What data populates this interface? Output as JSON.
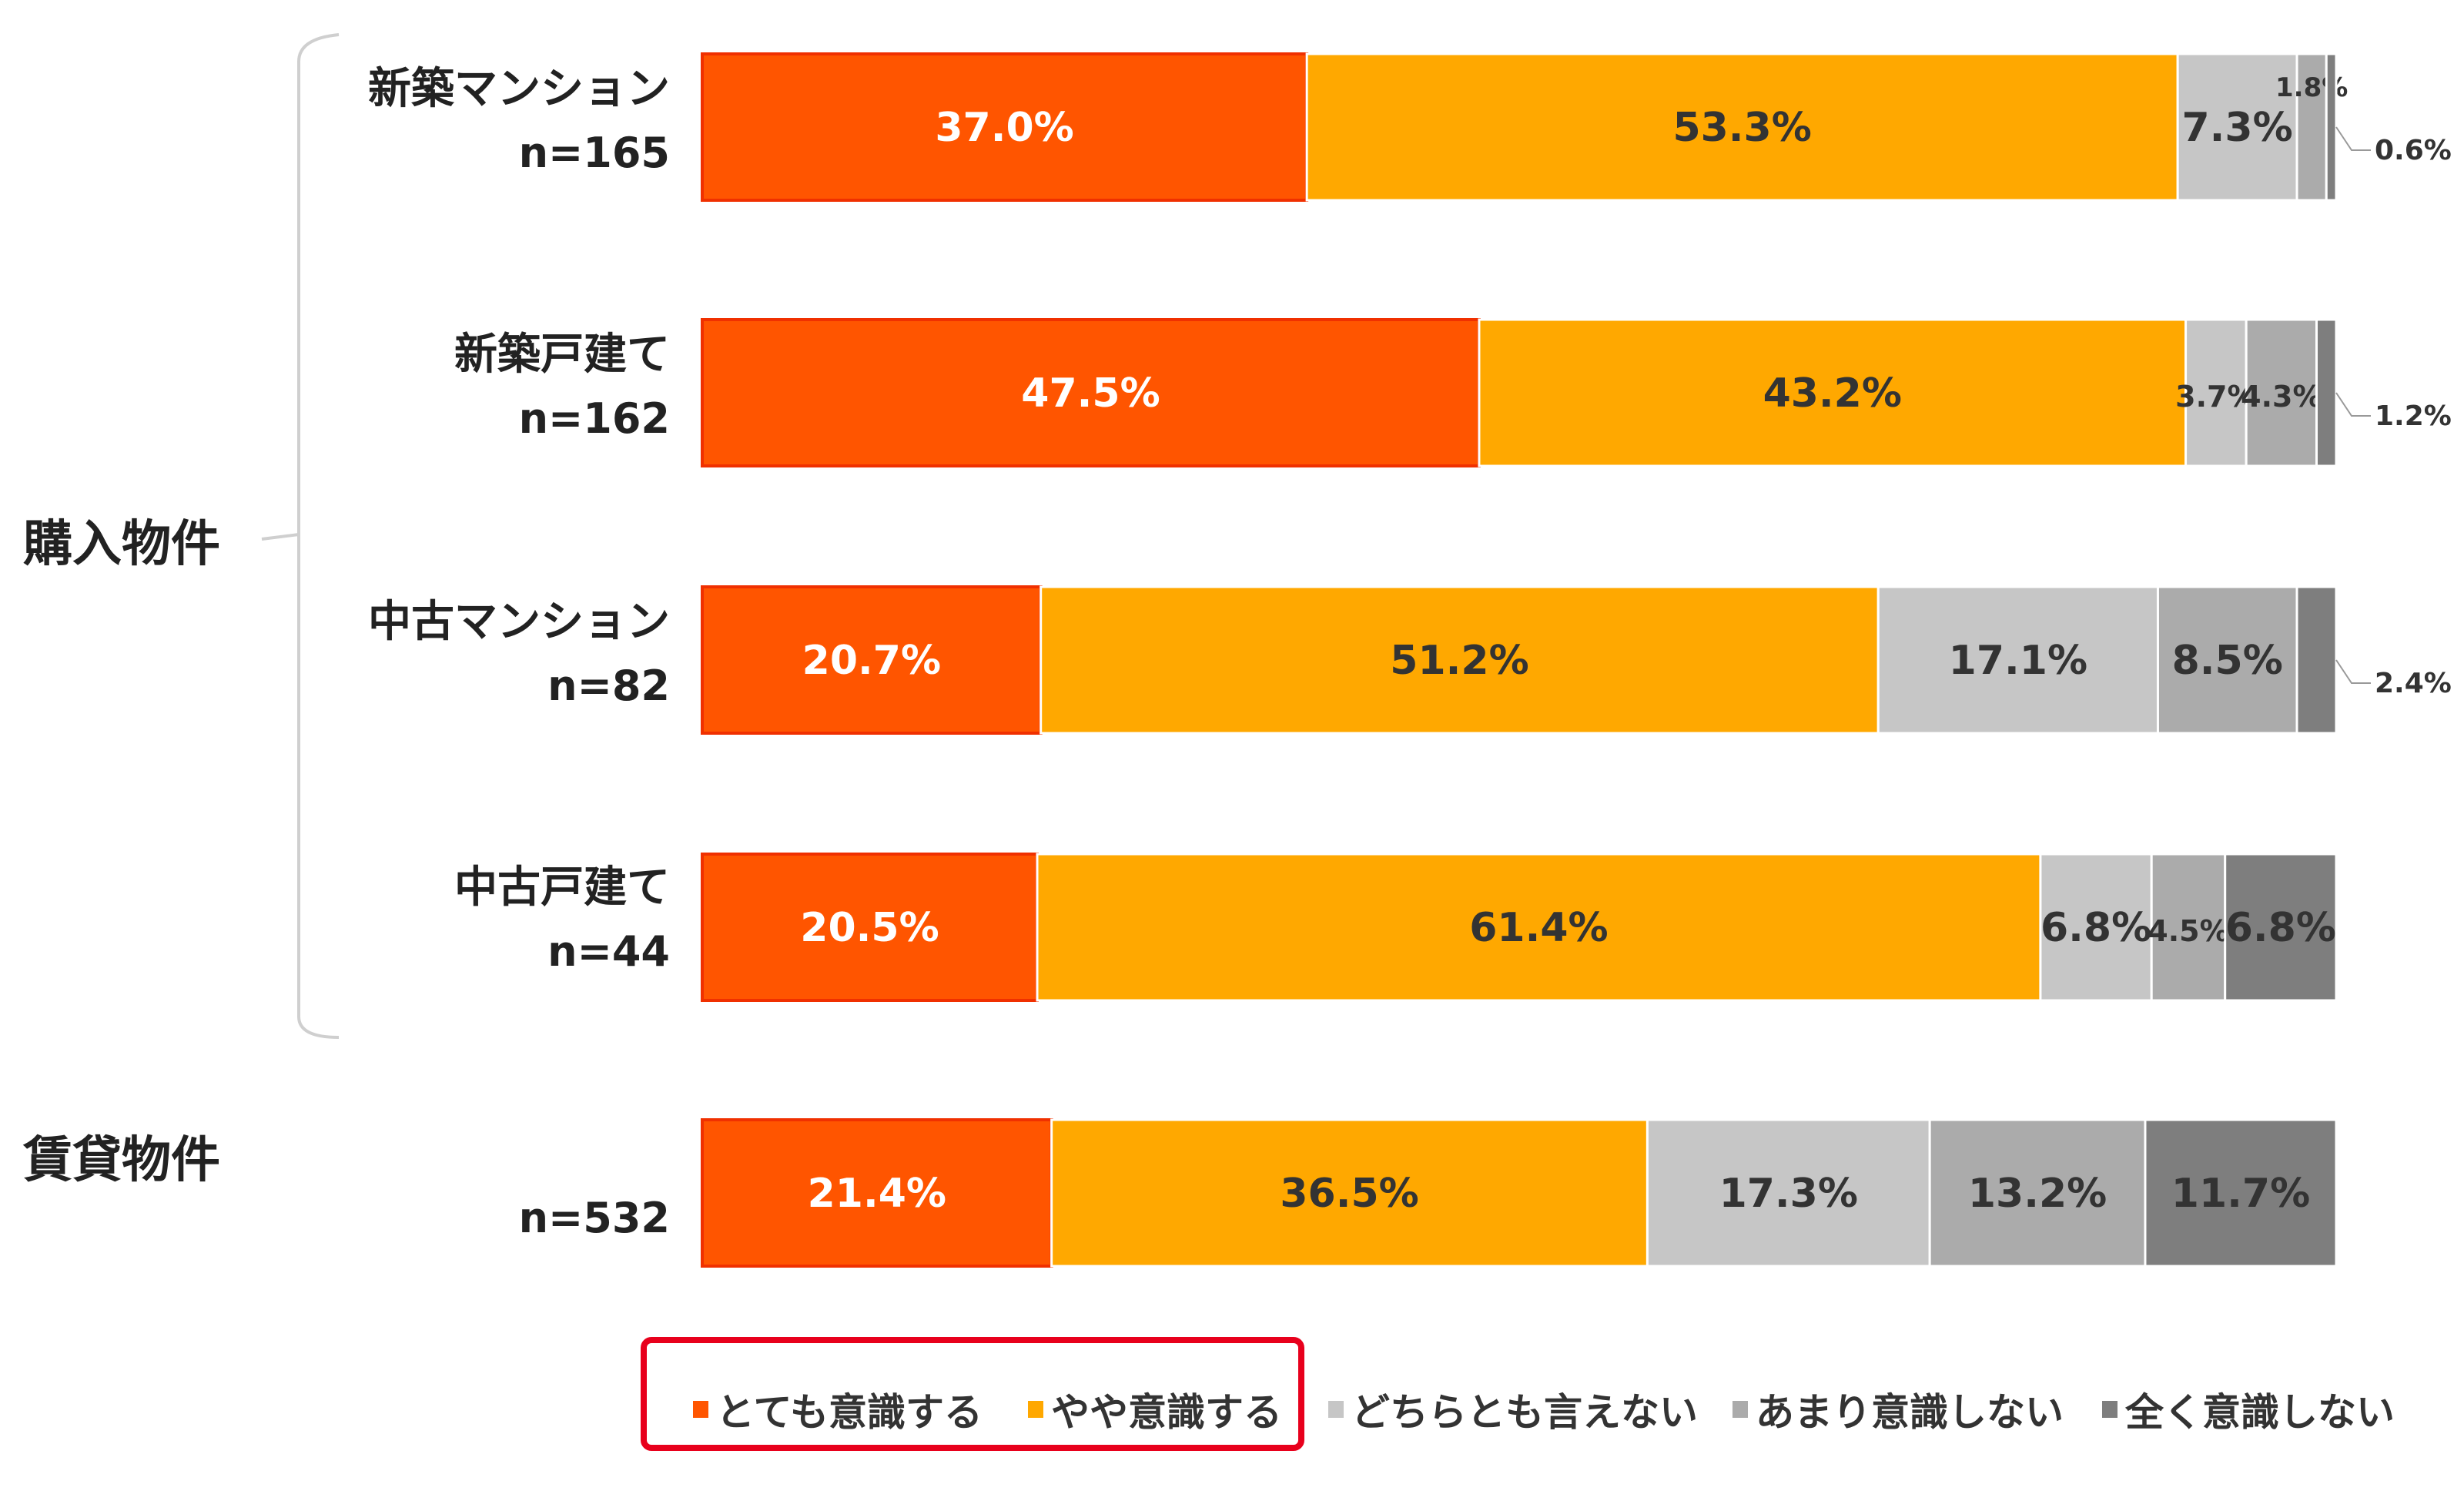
{
  "chart_data": {
    "type": "bar",
    "orientation": "horizontal",
    "stacked": true,
    "percent_stacked": true,
    "groups": [
      {
        "label": "購入物件",
        "rows": [
          0,
          1,
          2,
          3
        ]
      },
      {
        "label": "賃貸物件",
        "rows": [
          4
        ]
      }
    ],
    "categories": [
      {
        "label": "新築マンション",
        "n": "n=165"
      },
      {
        "label": "新築戸建て",
        "n": "n=162"
      },
      {
        "label": "中古マンション",
        "n": "n=82"
      },
      {
        "label": "中古戸建て",
        "n": "n=44"
      },
      {
        "label": "",
        "n": "n=532"
      }
    ],
    "series": [
      {
        "name": "とても意識する",
        "color": "#FF5500",
        "values": [
          37.0,
          47.5,
          20.7,
          20.5,
          21.4
        ]
      },
      {
        "name": "やや意識する",
        "color": "#FFA800",
        "values": [
          53.3,
          43.2,
          51.2,
          61.4,
          36.5
        ]
      },
      {
        "name": "どちらとも言えない",
        "color": "#C6C6C6",
        "values": [
          7.3,
          3.7,
          17.1,
          6.8,
          17.3
        ]
      },
      {
        "name": "あまり意識しない",
        "color": "#ABABAB",
        "values": [
          1.8,
          4.3,
          8.5,
          4.5,
          13.2
        ]
      },
      {
        "name": "全く意識しない",
        "color": "#7E7E7E",
        "values": [
          0.6,
          1.2,
          2.4,
          6.8,
          11.7
        ]
      }
    ],
    "labels": [
      [
        "37.0%",
        "53.3%",
        "7.3%",
        "1.8%",
        "0.6%"
      ],
      [
        "47.5%",
        "43.2%",
        "3.7%",
        "4.3%",
        "1.2%"
      ],
      [
        "20.7%",
        "51.2%",
        "17.1%",
        "8.5%",
        "2.4%"
      ],
      [
        "20.5%",
        "61.4%",
        "6.8%",
        "4.5%",
        "6.8%"
      ],
      [
        "21.4%",
        "36.5%",
        "17.3%",
        "13.2%",
        "11.7%"
      ]
    ],
    "legend": {
      "position": "bottom",
      "highlighted": [
        "とても意識する",
        "やや意識する"
      ],
      "highlight_color": "#E8001C"
    },
    "xlim": [
      0,
      100
    ],
    "grid": false
  }
}
